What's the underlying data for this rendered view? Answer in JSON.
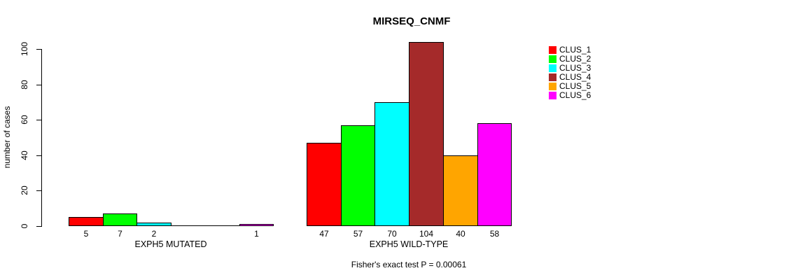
{
  "chart_data": {
    "type": "bar",
    "title": "MIRSEQ_CNMF",
    "subtitle": "Fisher's exact test P = 0.00061",
    "ylabel": "number of cases",
    "xlabel": "",
    "ylim": [
      0,
      104
    ],
    "yticks": [
      0,
      20,
      40,
      60,
      80,
      100
    ],
    "grid": false,
    "legend_position": "right",
    "bar_value_labels_visible": true,
    "series": [
      {
        "name": "CLUS_1",
        "color": "#FF0000"
      },
      {
        "name": "CLUS_2",
        "color": "#00FF00"
      },
      {
        "name": "CLUS_3",
        "color": "#00FFFF"
      },
      {
        "name": "CLUS_4",
        "color": "#A52A2A"
      },
      {
        "name": "CLUS_5",
        "color": "#FFA500"
      },
      {
        "name": "CLUS_6",
        "color": "#FF00FF"
      }
    ],
    "groups": [
      {
        "label": "EXPH5 MUTATED",
        "values": [
          5,
          7,
          2,
          0,
          0,
          1
        ]
      },
      {
        "label": "EXPH5 WILD-TYPE",
        "values": [
          47,
          57,
          70,
          104,
          40,
          58
        ]
      }
    ]
  }
}
